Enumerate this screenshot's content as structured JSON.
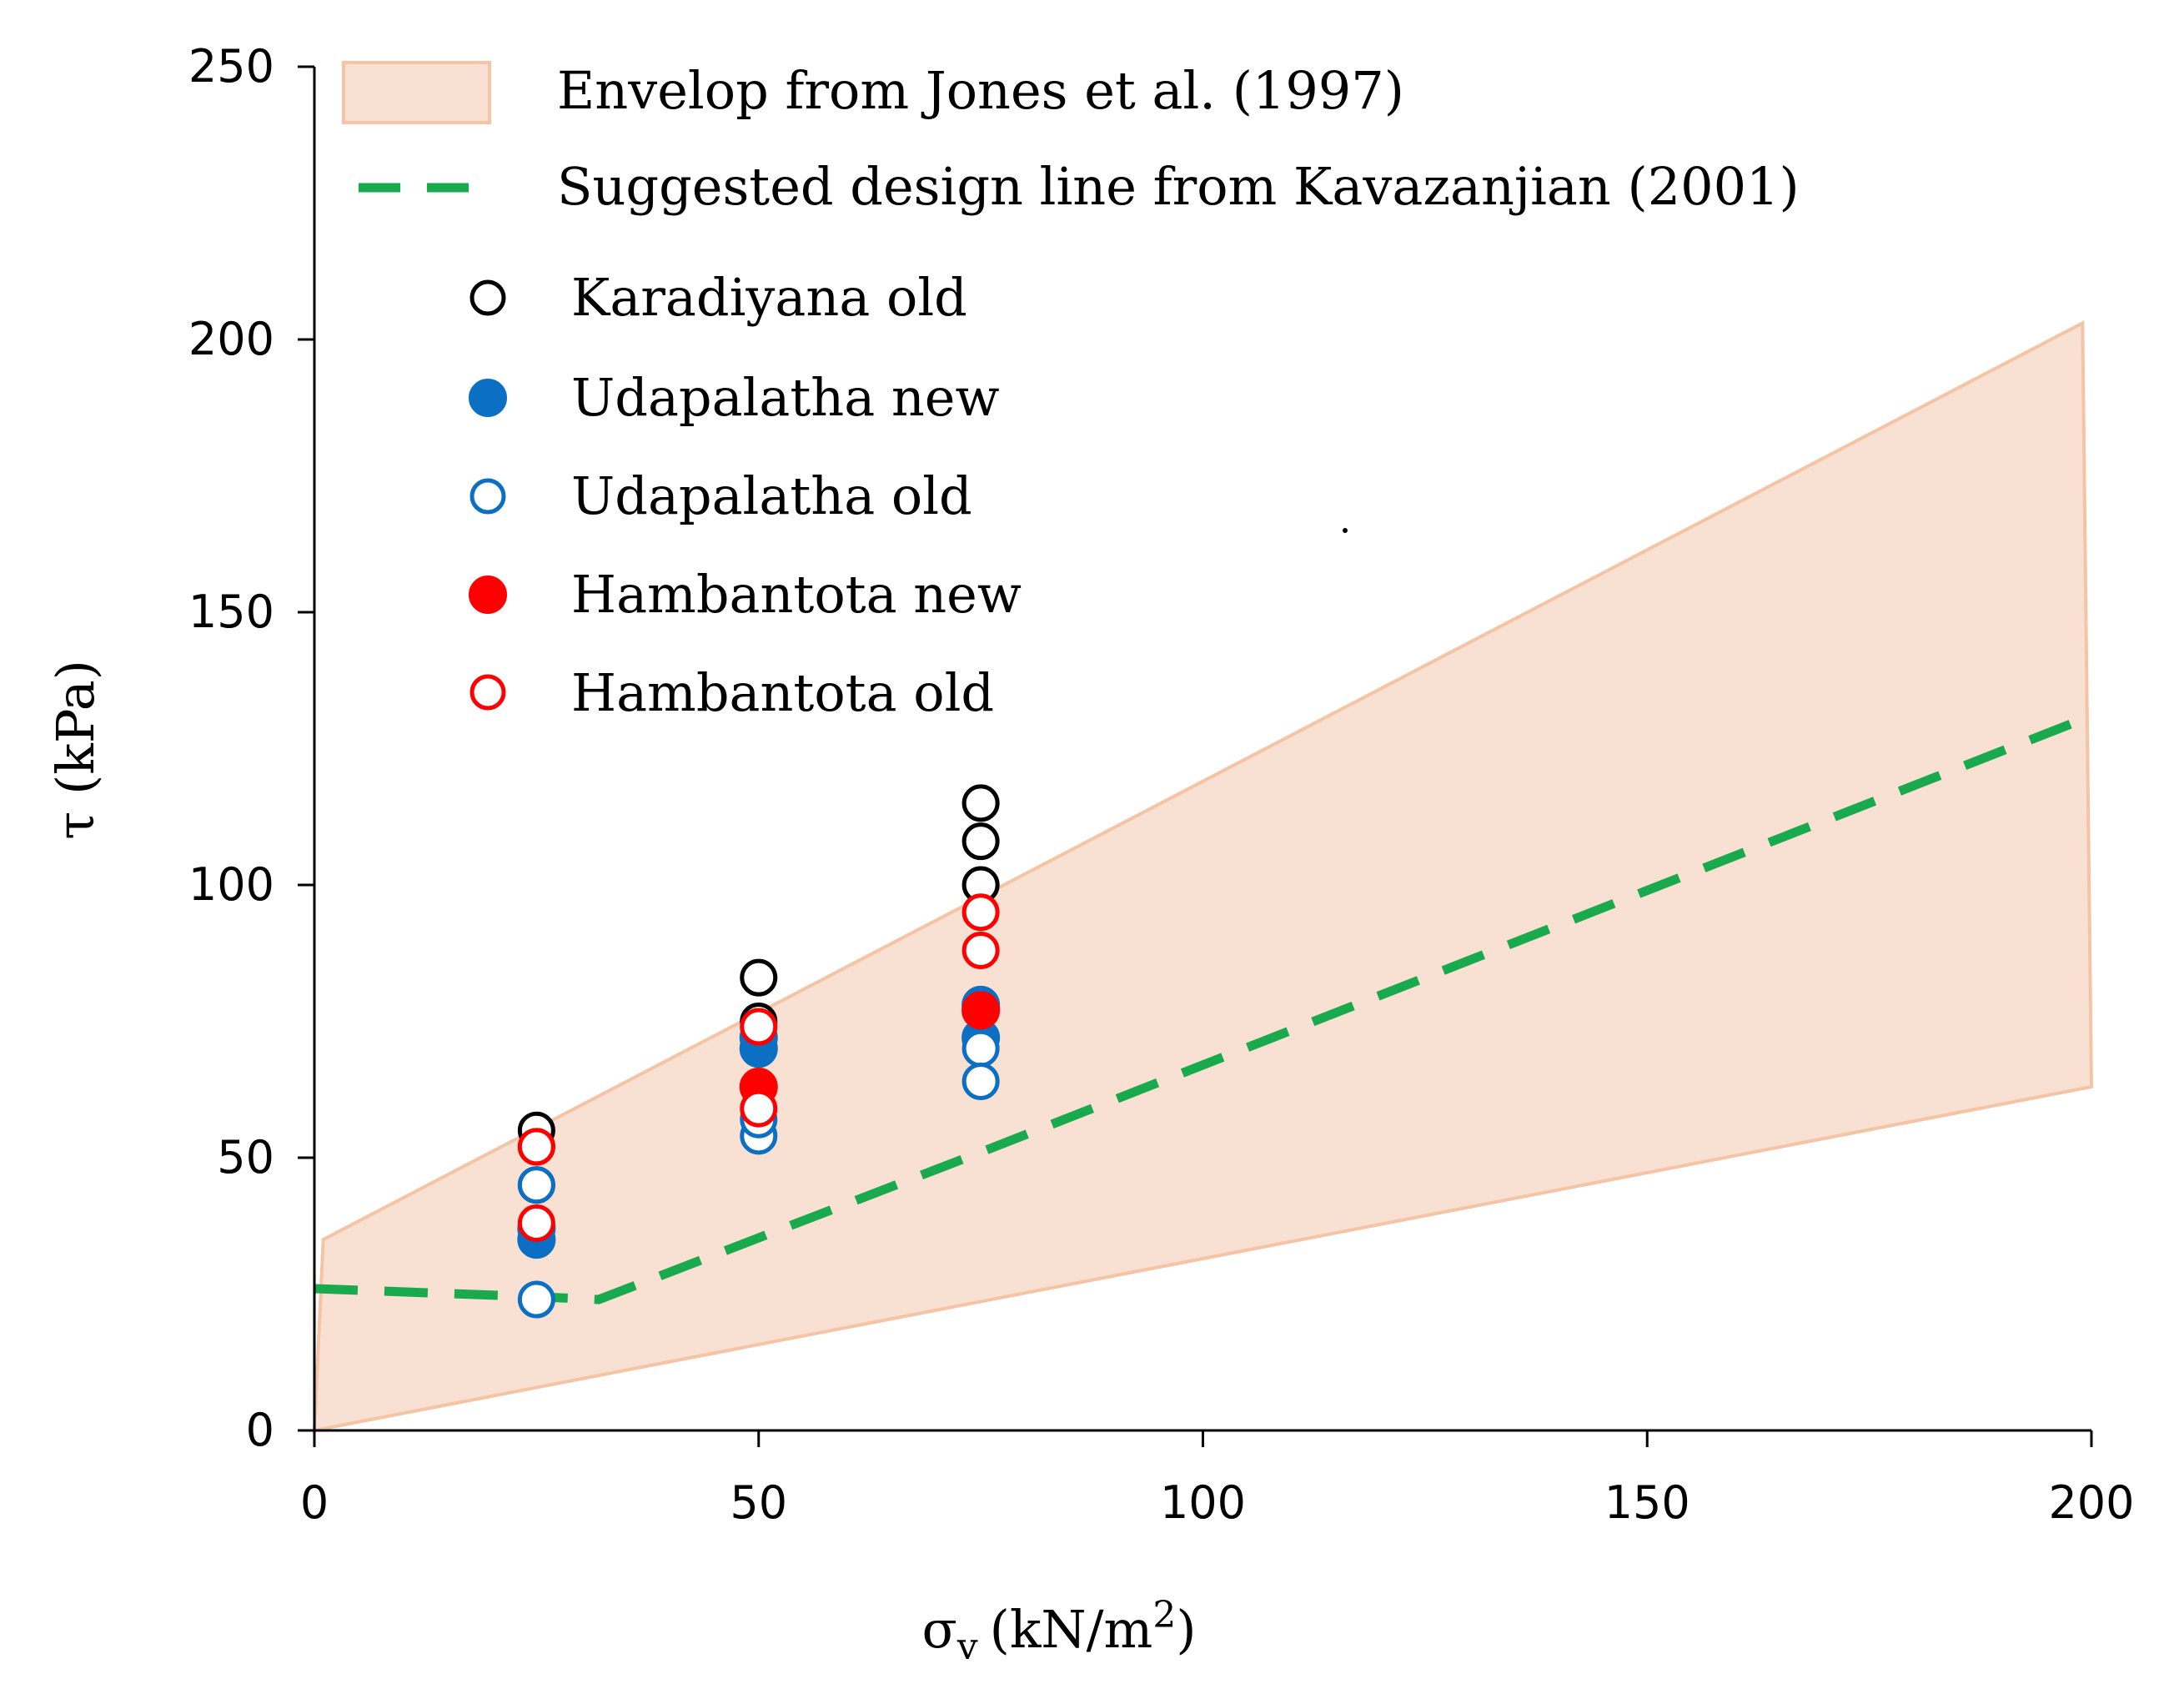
{
  "chart_data": {
    "type": "scatter",
    "title": "",
    "xlabel": {
      "symbol": "σ",
      "subscript": "v",
      "units": "(kN/m",
      "sup": "2",
      "close": ")"
    },
    "ylabel": "τ (kPa)",
    "xlim": [
      0,
      200
    ],
    "ylim": [
      0,
      250
    ],
    "xticks": [
      0,
      50,
      100,
      150,
      200
    ],
    "yticks": [
      0,
      50,
      100,
      150,
      200,
      250
    ],
    "grid": false,
    "legend_position": "top-left",
    "envelope": {
      "name": "Envelop from Jones et al. (1997)",
      "color": "#f8e0d2",
      "edge_color": "#f4c4a4",
      "upper": [
        [
          0,
          0
        ],
        [
          1,
          35
        ],
        [
          199,
          203
        ]
      ],
      "lower": [
        [
          0,
          0
        ],
        [
          200,
          63
        ]
      ]
    },
    "design_line": {
      "name": "Suggested design line from Kavazanjian (2001)",
      "color": "#1aaa4e",
      "points": [
        [
          0,
          26
        ],
        [
          25,
          24.5
        ],
        [
          32,
          24
        ],
        [
          75,
          51
        ],
        [
          200,
          131
        ]
      ]
    },
    "series": [
      {
        "name": "Karadiyana old",
        "marker": "open",
        "color": "#000000",
        "points": [
          [
            25,
            55
          ],
          [
            25,
            52
          ],
          [
            25,
            45
          ],
          [
            50,
            83
          ],
          [
            50,
            75
          ],
          [
            75,
            115
          ],
          [
            75,
            108
          ],
          [
            75,
            100
          ]
        ]
      },
      {
        "name": "Udapalatha new",
        "marker": "filled",
        "color": "#0b6fc4",
        "points": [
          [
            25,
            35
          ],
          [
            25,
            37
          ],
          [
            50,
            70
          ],
          [
            50,
            72
          ],
          [
            75,
            78
          ],
          [
            75,
            72
          ]
        ]
      },
      {
        "name": "Udapalatha old",
        "marker": "open",
        "color": "#0b6fc4",
        "points": [
          [
            25,
            45
          ],
          [
            25,
            24
          ],
          [
            50,
            54
          ],
          [
            50,
            57
          ],
          [
            75,
            70
          ],
          [
            75,
            64
          ]
        ]
      },
      {
        "name": "Hambantota new",
        "marker": "filled",
        "color": "#ff0000",
        "points": [
          [
            50,
            63
          ],
          [
            75,
            77
          ]
        ]
      },
      {
        "name": "Hambantota old",
        "marker": "open",
        "color": "#ff0000",
        "points": [
          [
            25,
            52
          ],
          [
            25,
            38
          ],
          [
            50,
            74
          ],
          [
            50,
            59
          ],
          [
            75,
            95
          ],
          [
            75,
            88
          ]
        ]
      }
    ]
  }
}
